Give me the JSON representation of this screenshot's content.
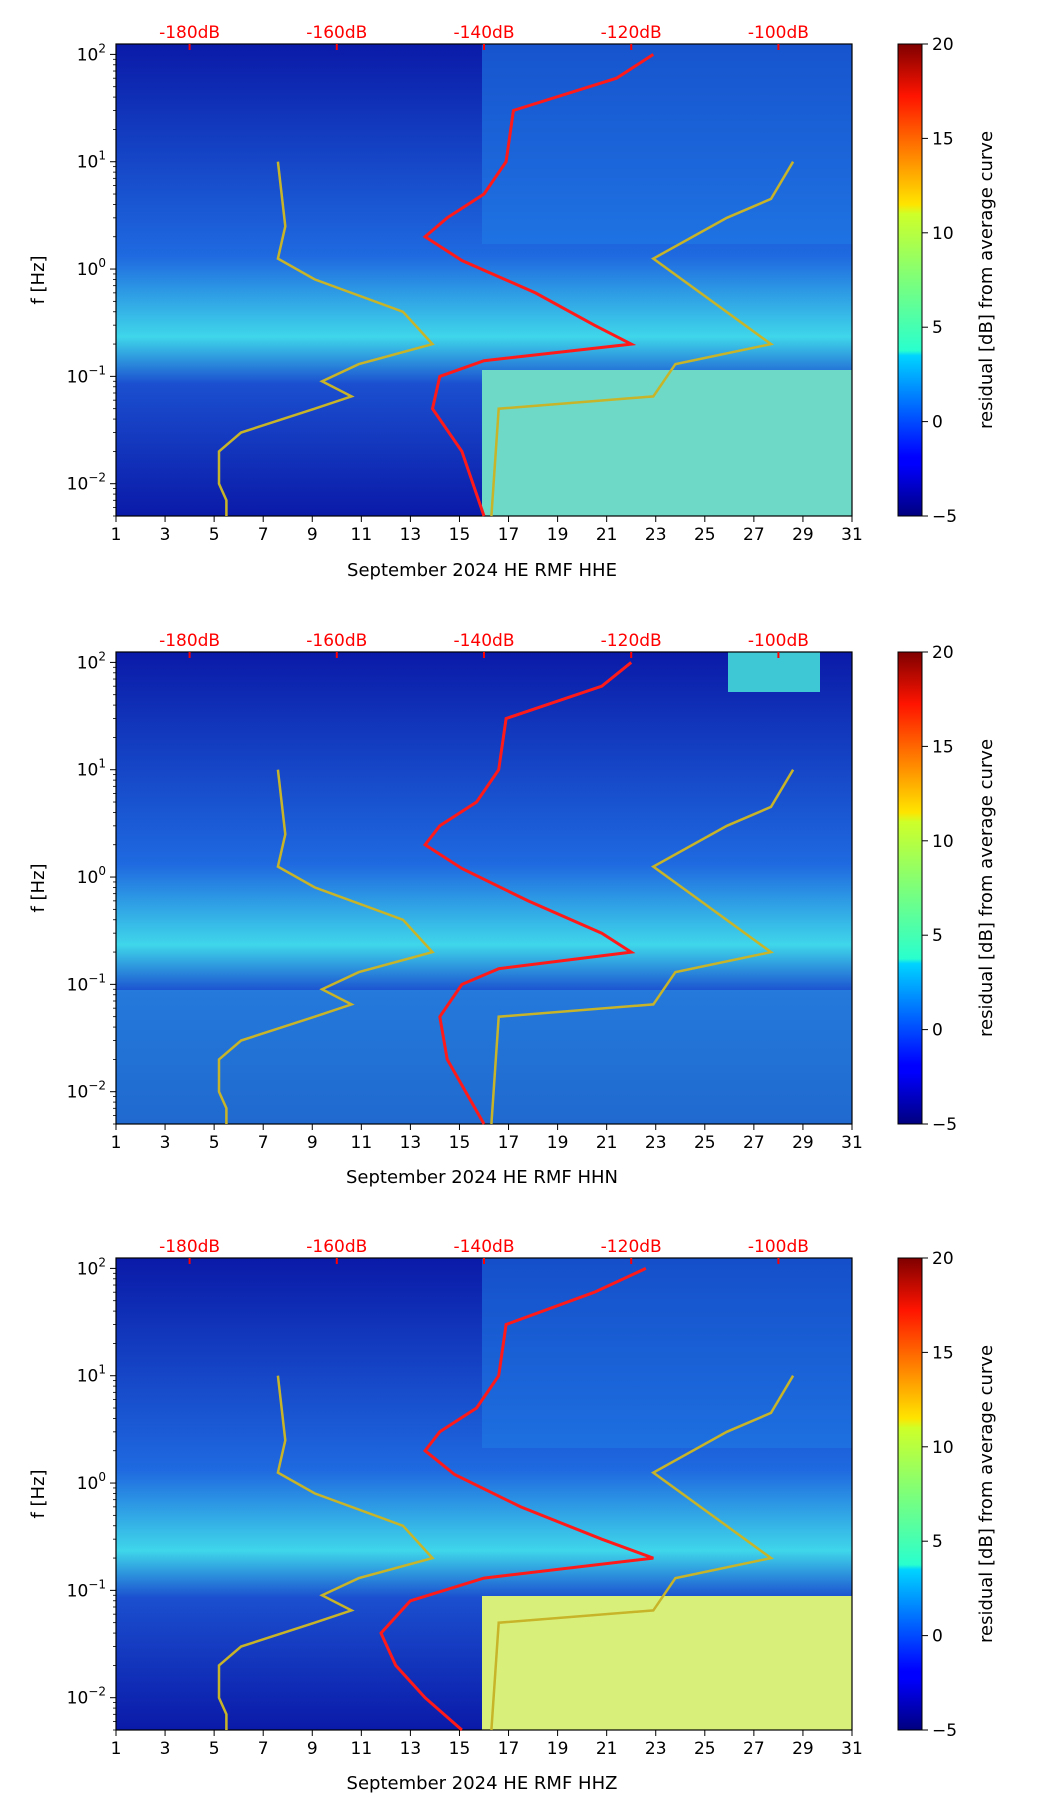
{
  "chart_data": [
    {
      "type": "heatmap",
      "title": "",
      "xlabel": "September 2024 HE RMF  HHE",
      "ylabel": "f [Hz]",
      "colorbar_label": "residual [dB] from average curve",
      "x_ticks": [
        "1",
        "3",
        "5",
        "7",
        "9",
        "11",
        "13",
        "15",
        "17",
        "19",
        "21",
        "23",
        "25",
        "27",
        "29",
        "31"
      ],
      "x_range": [
        1,
        31
      ],
      "y_range_hz": [
        0.005,
        125
      ],
      "y_ticks": [
        {
          "exp": "2"
        },
        {
          "exp": "1"
        },
        {
          "exp": "0"
        },
        {
          "exp": "−1"
        },
        {
          "exp": "−2"
        }
      ],
      "top_axis_labels": [
        "-180dB",
        "-160dB",
        "-140dB",
        "-120dB",
        "-100dB"
      ],
      "colorbar_ticks": [
        "20",
        "15",
        "10",
        "5",
        "0",
        "−5"
      ],
      "colorbar_range": [
        -5,
        20
      ],
      "red_curve_db": [
        [
          0.005,
          -140
        ],
        [
          0.02,
          -143
        ],
        [
          0.05,
          -147
        ],
        [
          0.1,
          -146
        ],
        [
          0.14,
          -140
        ],
        [
          0.2,
          -120
        ],
        [
          0.3,
          -125
        ],
        [
          0.6,
          -133
        ],
        [
          1.2,
          -143
        ],
        [
          2.0,
          -148
        ],
        [
          3.0,
          -145
        ],
        [
          5.0,
          -140
        ],
        [
          10.0,
          -137
        ],
        [
          30.0,
          -136
        ],
        [
          60.0,
          -122
        ],
        [
          100.0,
          -117
        ]
      ],
      "yellow_curve_db": [
        [
          0.005,
          -175
        ],
        [
          0.007,
          -175
        ],
        [
          0.01,
          -176
        ],
        [
          0.015,
          -176
        ],
        [
          0.02,
          -176
        ],
        [
          0.03,
          -173
        ],
        [
          0.05,
          -163
        ],
        [
          0.065,
          -158
        ],
        [
          0.09,
          -162
        ],
        [
          0.13,
          -157
        ],
        [
          0.2,
          -147
        ],
        [
          0.4,
          -151
        ],
        [
          0.8,
          -163
        ],
        [
          1.25,
          -168
        ],
        [
          2.5,
          -167
        ],
        [
          10,
          -168
        ]
      ],
      "yellow_curve_high_db": [
        [
          0.005,
          -139
        ],
        [
          0.05,
          -138
        ],
        [
          0.065,
          -117
        ],
        [
          0.13,
          -114
        ],
        [
          0.2,
          -101
        ],
        [
          1.25,
          -117
        ],
        [
          3,
          -107
        ],
        [
          4.5,
          -101
        ],
        [
          10,
          -98
        ]
      ]
    },
    {
      "type": "heatmap",
      "title": "",
      "xlabel": "September 2024 HE RMF  HHN",
      "ylabel": "f [Hz]",
      "colorbar_label": "residual [dB] from average curve",
      "x_ticks": [
        "1",
        "3",
        "5",
        "7",
        "9",
        "11",
        "13",
        "15",
        "17",
        "19",
        "21",
        "23",
        "25",
        "27",
        "29",
        "31"
      ],
      "x_range": [
        1,
        31
      ],
      "y_range_hz": [
        0.005,
        125
      ],
      "y_ticks": [
        {
          "exp": "2"
        },
        {
          "exp": "1"
        },
        {
          "exp": "0"
        },
        {
          "exp": "−1"
        },
        {
          "exp": "−2"
        }
      ],
      "top_axis_labels": [
        "-180dB",
        "-160dB",
        "-140dB",
        "-120dB",
        "-100dB"
      ],
      "colorbar_ticks": [
        "20",
        "15",
        "10",
        "5",
        "0",
        "−5"
      ],
      "colorbar_range": [
        -5,
        20
      ],
      "red_curve_db": [
        [
          0.005,
          -140
        ],
        [
          0.02,
          -145
        ],
        [
          0.05,
          -146
        ],
        [
          0.1,
          -143
        ],
        [
          0.14,
          -138
        ],
        [
          0.2,
          -120
        ],
        [
          0.3,
          -124
        ],
        [
          0.6,
          -134
        ],
        [
          1.2,
          -143
        ],
        [
          2.0,
          -148
        ],
        [
          3.0,
          -146
        ],
        [
          5.0,
          -141
        ],
        [
          10.0,
          -138
        ],
        [
          30.0,
          -137
        ],
        [
          60.0,
          -124
        ],
        [
          100.0,
          -120
        ]
      ],
      "yellow_curve_db": [
        [
          0.005,
          -175
        ],
        [
          0.007,
          -175
        ],
        [
          0.01,
          -176
        ],
        [
          0.015,
          -176
        ],
        [
          0.02,
          -176
        ],
        [
          0.03,
          -173
        ],
        [
          0.05,
          -163
        ],
        [
          0.065,
          -158
        ],
        [
          0.09,
          -162
        ],
        [
          0.13,
          -157
        ],
        [
          0.2,
          -147
        ],
        [
          0.4,
          -151
        ],
        [
          0.8,
          -163
        ],
        [
          1.25,
          -168
        ],
        [
          2.5,
          -167
        ],
        [
          10,
          -168
        ]
      ],
      "yellow_curve_high_db": [
        [
          0.005,
          -139
        ],
        [
          0.05,
          -138
        ],
        [
          0.065,
          -117
        ],
        [
          0.13,
          -114
        ],
        [
          0.2,
          -101
        ],
        [
          1.25,
          -117
        ],
        [
          3,
          -107
        ],
        [
          4.5,
          -101
        ],
        [
          10,
          -98
        ]
      ]
    },
    {
      "type": "heatmap",
      "title": "",
      "xlabel": "September 2024 HE RMF  HHZ",
      "ylabel": "f [Hz]",
      "colorbar_label": "residual [dB] from average curve",
      "x_ticks": [
        "1",
        "3",
        "5",
        "7",
        "9",
        "11",
        "13",
        "15",
        "17",
        "19",
        "21",
        "23",
        "25",
        "27",
        "29",
        "31"
      ],
      "x_range": [
        1,
        31
      ],
      "y_range_hz": [
        0.005,
        125
      ],
      "y_ticks": [
        {
          "exp": "2"
        },
        {
          "exp": "1"
        },
        {
          "exp": "0"
        },
        {
          "exp": "−1"
        },
        {
          "exp": "−2"
        }
      ],
      "top_axis_labels": [
        "-180dB",
        "-160dB",
        "-140dB",
        "-120dB",
        "-100dB"
      ],
      "colorbar_ticks": [
        "20",
        "15",
        "10",
        "5",
        "0",
        "−5"
      ],
      "colorbar_range": [
        -5,
        20
      ],
      "red_curve_db": [
        [
          0.005,
          -143
        ],
        [
          0.01,
          -148
        ],
        [
          0.02,
          -152
        ],
        [
          0.04,
          -154
        ],
        [
          0.08,
          -150
        ],
        [
          0.13,
          -140
        ],
        [
          0.2,
          -117
        ],
        [
          0.3,
          -124
        ],
        [
          0.6,
          -135
        ],
        [
          1.2,
          -144
        ],
        [
          2.0,
          -148
        ],
        [
          3.0,
          -146
        ],
        [
          5.0,
          -141
        ],
        [
          10.0,
          -138
        ],
        [
          30.0,
          -137
        ],
        [
          60.0,
          -125
        ],
        [
          100.0,
          -118
        ]
      ],
      "yellow_curve_db": [
        [
          0.005,
          -175
        ],
        [
          0.007,
          -175
        ],
        [
          0.01,
          -176
        ],
        [
          0.015,
          -176
        ],
        [
          0.02,
          -176
        ],
        [
          0.03,
          -173
        ],
        [
          0.05,
          -163
        ],
        [
          0.065,
          -158
        ],
        [
          0.09,
          -162
        ],
        [
          0.13,
          -157
        ],
        [
          0.2,
          -147
        ],
        [
          0.4,
          -151
        ],
        [
          0.8,
          -163
        ],
        [
          1.25,
          -168
        ],
        [
          2.5,
          -167
        ],
        [
          10,
          -168
        ]
      ],
      "yellow_curve_high_db": [
        [
          0.005,
          -139
        ],
        [
          0.05,
          -138
        ],
        [
          0.065,
          -117
        ],
        [
          0.13,
          -114
        ],
        [
          0.2,
          -101
        ],
        [
          1.25,
          -117
        ],
        [
          3,
          -107
        ],
        [
          4.5,
          -101
        ],
        [
          10,
          -98
        ]
      ]
    }
  ],
  "colors": {
    "red_curve": "#ff1a1a",
    "yellow_curve": "#c8b428",
    "background": "#ffffff"
  }
}
